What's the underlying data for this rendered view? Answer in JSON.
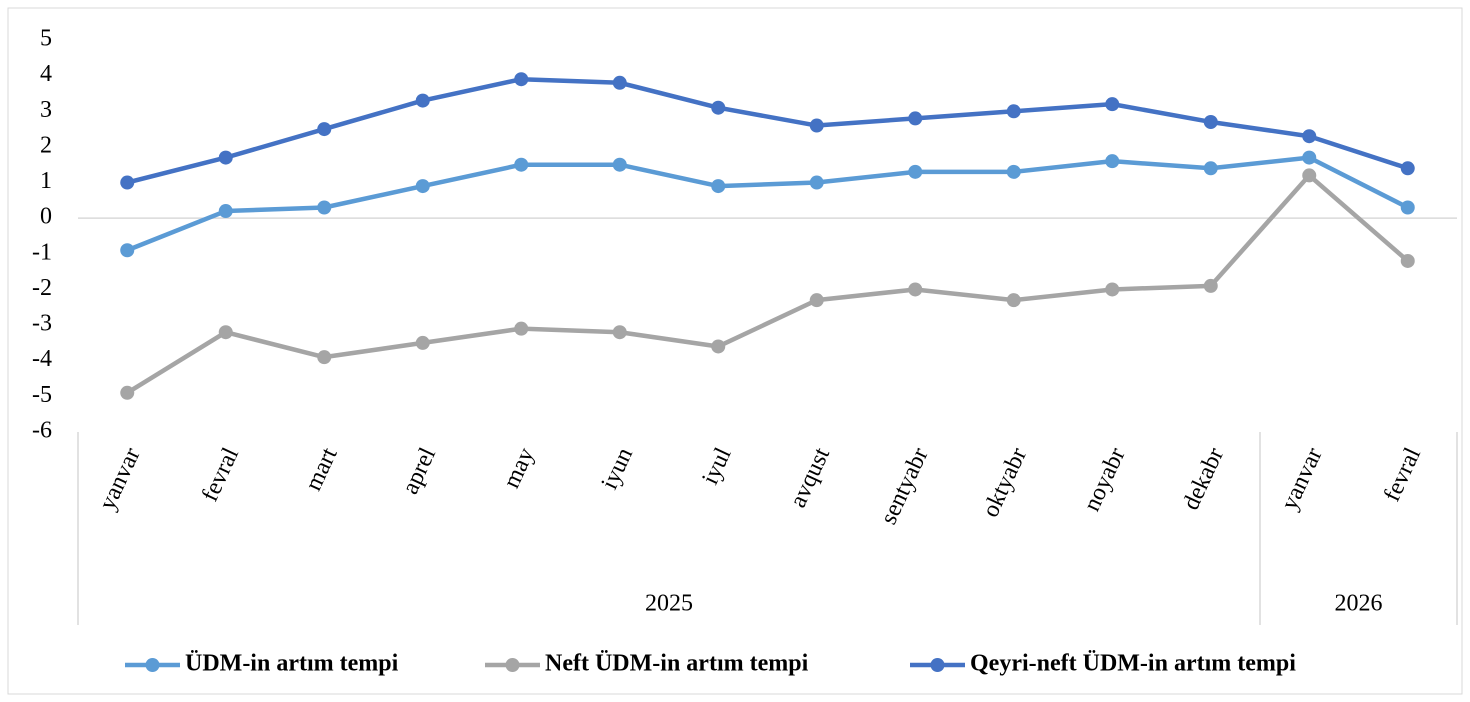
{
  "chart_data": {
    "type": "line",
    "categories": [
      "yanvar",
      "fevral",
      "mart",
      "aprel",
      "may",
      "iyun",
      "iyul",
      "avqust",
      "sentyabr",
      "oktyabr",
      "noyabr",
      "dekabr",
      "yanvar",
      "fevral"
    ],
    "groups": [
      {
        "label": "2025",
        "count": 12
      },
      {
        "label": "2026",
        "count": 2
      }
    ],
    "series": [
      {
        "name": "ÜDM-in artım tempi",
        "color": "#5b9bd5",
        "values": [
          -0.9,
          0.2,
          0.3,
          0.9,
          1.5,
          1.5,
          0.9,
          1.0,
          1.3,
          1.3,
          1.6,
          1.4,
          1.7,
          0.3
        ]
      },
      {
        "name": "Neft ÜDM-in artım tempi",
        "color": "#a5a5a5",
        "values": [
          -4.9,
          -3.2,
          -3.9,
          -3.5,
          -3.1,
          -3.2,
          -3.6,
          -2.3,
          -2.0,
          -2.3,
          -2.0,
          -1.9,
          1.2,
          -1.2
        ]
      },
      {
        "name": "Qeyri-neft ÜDM-in artım tempi",
        "color": "#4472c4",
        "values": [
          1.0,
          1.7,
          2.5,
          3.3,
          3.9,
          3.8,
          3.1,
          2.6,
          2.8,
          3.0,
          3.2,
          2.7,
          2.3,
          1.4
        ]
      }
    ],
    "ylim": [
      -6,
      5
    ],
    "yticks": [
      -6,
      -5,
      -4,
      -3,
      -2,
      -1,
      0,
      1,
      2,
      3,
      4,
      5
    ],
    "legend": "bottom"
  }
}
